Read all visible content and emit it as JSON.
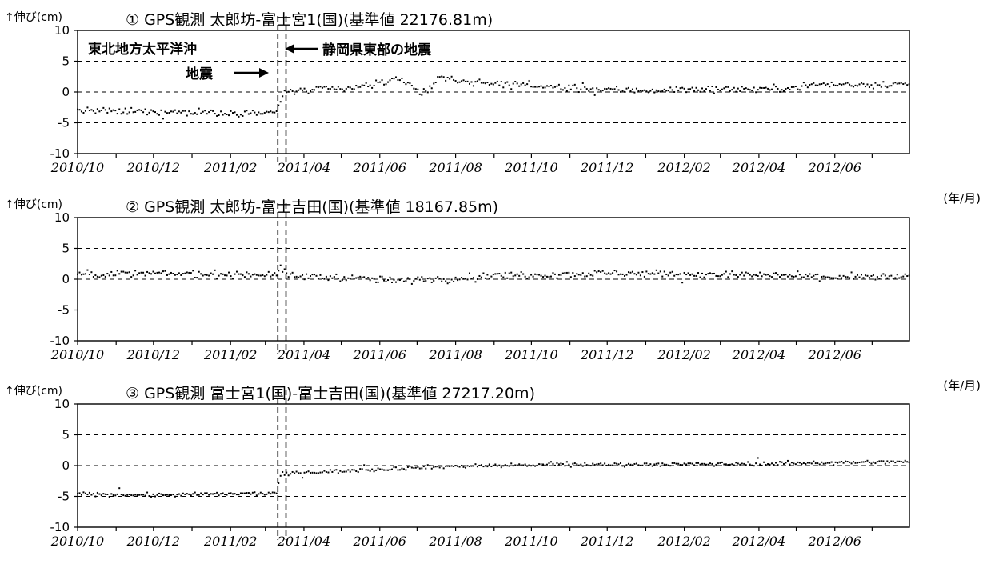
{
  "chart_data": [
    {
      "type": "scatter",
      "title": "① GPS観測 太郎坊-富士宮1(国)(基準値 22176.81m)",
      "ylabel": "↑伸び(cm)",
      "xlabel": "(年/月)",
      "ylim": [
        -10,
        10
      ],
      "yticks": [
        "10",
        "5",
        "0",
        "-5",
        "-10"
      ],
      "xlim": [
        "2010-10-01",
        "2012-07-31"
      ],
      "x_tick_labels": [
        "2010/10",
        "2010/12",
        "2011/02",
        "2011/04",
        "2011/06",
        "2011/08",
        "2011/10",
        "2011/12",
        "2012/02",
        "2012/04",
        "2012/06"
      ],
      "grid": "horizontal dashed",
      "event_lines": [
        "2011-03-11",
        "2011-03-15"
      ],
      "annotations": [
        "東北地方太平洋沖",
        "地震",
        "静岡県東部の地震"
      ],
      "series": [
        {
          "points": [
            [
              "2010-10-01",
              -3.0
            ],
            [
              "2010-11-01",
              -3.2
            ],
            [
              "2010-12-01",
              -3.2
            ],
            [
              "2011-01-01",
              -3.3
            ],
            [
              "2011-02-01",
              -3.4
            ],
            [
              "2011-03-10",
              -3.3
            ],
            [
              "2011-03-16",
              0.0
            ],
            [
              "2011-04-15",
              0.4
            ],
            [
              "2011-05-15",
              0.7
            ],
            [
              "2011-06-10",
              2.0
            ],
            [
              "2011-06-25",
              1.5
            ],
            [
              "2011-07-05",
              -0.5
            ],
            [
              "2011-07-20",
              2.5
            ],
            [
              "2011-08-15",
              1.5
            ],
            [
              "2011-09-15",
              1.3
            ],
            [
              "2011-10-15",
              0.8
            ],
            [
              "2011-11-15",
              0.5
            ],
            [
              "2011-12-15",
              0.3
            ],
            [
              "2012-01-15",
              0.3
            ],
            [
              "2012-02-15",
              0.5
            ],
            [
              "2012-03-15",
              0.5
            ],
            [
              "2012-04-15",
              0.5
            ],
            [
              "2012-05-15",
              1.2
            ],
            [
              "2012-06-15",
              1.2
            ],
            [
              "2012-07-31",
              1.3
            ]
          ]
        }
      ]
    },
    {
      "type": "scatter",
      "title": "② GPS観測 太郎坊-富士吉田(国)(基準値 18167.85m)",
      "ylabel": "↑伸び(cm)",
      "xlabel": "(年/月)",
      "ylim": [
        -10,
        10
      ],
      "yticks": [
        "10",
        "5",
        "0",
        "-5",
        "-10"
      ],
      "xlim": [
        "2010-10-01",
        "2012-07-31"
      ],
      "x_tick_labels": [
        "2010/10",
        "2010/12",
        "2011/02",
        "2011/04",
        "2011/06",
        "2011/08",
        "2011/10",
        "2011/12",
        "2012/02",
        "2012/04",
        "2012/06"
      ],
      "grid": "horizontal dashed",
      "event_lines": [
        "2011-03-11",
        "2011-03-15"
      ],
      "series": [
        {
          "points": [
            [
              "2010-10-01",
              0.8
            ],
            [
              "2010-12-01",
              0.9
            ],
            [
              "2011-02-01",
              0.8
            ],
            [
              "2011-03-10",
              0.8
            ],
            [
              "2011-03-14",
              1.8
            ],
            [
              "2011-03-20",
              0.5
            ],
            [
              "2011-05-01",
              0.3
            ],
            [
              "2011-06-15",
              -0.3
            ],
            [
              "2011-08-01",
              0.2
            ],
            [
              "2011-09-01",
              0.6
            ],
            [
              "2011-10-15",
              0.8
            ],
            [
              "2011-12-15",
              1.0
            ],
            [
              "2012-02-15",
              0.8
            ],
            [
              "2012-04-15",
              0.6
            ],
            [
              "2012-06-15",
              0.3
            ],
            [
              "2012-07-31",
              0.4
            ]
          ]
        }
      ]
    },
    {
      "type": "scatter",
      "title": "③ GPS観測 富士宮1(国)-富士吉田(国)(基準値 27217.20m)",
      "ylabel": "↑伸び(cm)",
      "xlabel": "(年/月)",
      "ylim": [
        -10,
        10
      ],
      "yticks": [
        "10",
        "5",
        "0",
        "-5",
        "-10"
      ],
      "xlim": [
        "2010-10-01",
        "2012-07-31"
      ],
      "x_tick_labels": [
        "2010/10",
        "2010/12",
        "2011/02",
        "2011/04",
        "2011/06",
        "2011/08",
        "2011/10",
        "2011/12",
        "2012/02",
        "2012/04",
        "2012/06"
      ],
      "grid": "horizontal dashed",
      "event_lines": [
        "2011-03-11",
        "2011-03-15"
      ],
      "series": [
        {
          "points": [
            [
              "2010-10-01",
              -4.6
            ],
            [
              "2010-12-01",
              -4.8
            ],
            [
              "2011-02-01",
              -4.6
            ],
            [
              "2011-03-10",
              -4.5
            ],
            [
              "2011-03-13",
              -1.5
            ],
            [
              "2011-04-01",
              -1.1
            ],
            [
              "2011-05-01",
              -0.9
            ],
            [
              "2011-06-01",
              -0.6
            ],
            [
              "2011-07-01",
              -0.3
            ],
            [
              "2011-08-01",
              -0.1
            ],
            [
              "2011-09-01",
              0.0
            ],
            [
              "2011-10-01",
              0.1
            ],
            [
              "2011-12-01",
              0.2
            ],
            [
              "2012-02-01",
              0.2
            ],
            [
              "2012-04-01",
              0.3
            ],
            [
              "2012-06-01",
              0.5
            ],
            [
              "2012-07-31",
              0.6
            ]
          ]
        }
      ]
    }
  ]
}
